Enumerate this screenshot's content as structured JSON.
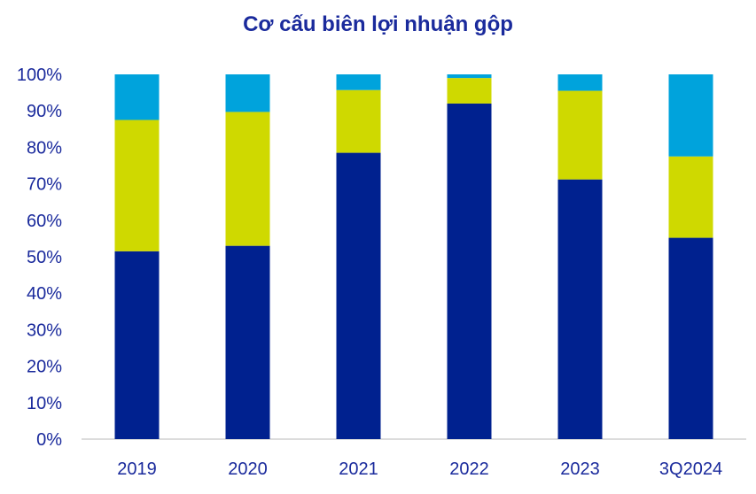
{
  "chart_data": {
    "type": "bar",
    "stacked": true,
    "title": "Cơ cấu biên lợi nhuận gộp",
    "xlabel": "",
    "ylabel": "",
    "ylim": [
      0,
      100
    ],
    "y_ticks": [
      "0%",
      "10%",
      "20%",
      "30%",
      "40%",
      "50%",
      "60%",
      "70%",
      "80%",
      "90%",
      "100%"
    ],
    "categories": [
      "2019",
      "2020",
      "2021",
      "2022",
      "2023",
      "3Q2024"
    ],
    "series": [
      {
        "name": "bottom",
        "color": "#00218f",
        "values": [
          51.5,
          53,
          78.5,
          92,
          71.2,
          55.2
        ]
      },
      {
        "name": "middle",
        "color": "#cfd900",
        "values": [
          36,
          36.7,
          17.2,
          7,
          24.3,
          22.3
        ]
      },
      {
        "name": "top",
        "color": "#00a3dc",
        "values": [
          12.5,
          10.3,
          4.3,
          1,
          4.5,
          22.5
        ]
      }
    ],
    "legend": "none",
    "grid": false
  }
}
